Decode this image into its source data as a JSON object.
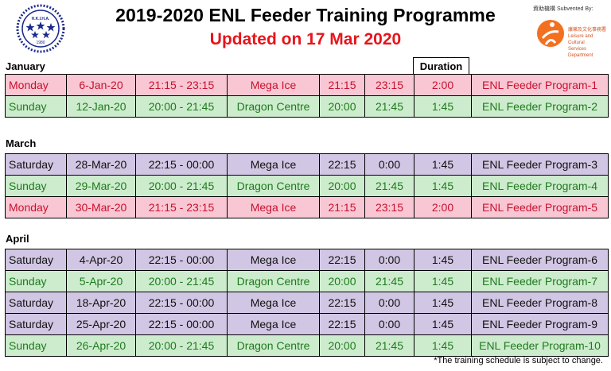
{
  "header": {
    "title": "2019-2020 ENL Feeder Training Programme",
    "subtitle": "Updated on 17 Mar 2020",
    "subtitle_color": "#e8141b",
    "logo_text": "H.K.I.H.A.",
    "logo_year": "1980",
    "logo_icon": "association-seal-icon",
    "sponsor": {
      "label": "資助機構 Subvented By:",
      "name_zh": "康樂及文化事務署",
      "name_en_1": "Leisure and Cultural",
      "name_en_2": "Services Department",
      "logo_icon": "lcsd-figure-icon"
    }
  },
  "duration_header": "Duration",
  "row_colors": {
    "pink": "#f9c7d3",
    "green": "#cdeccd",
    "purple": "#d1c6e3"
  },
  "sections": [
    {
      "label": "January",
      "rows": [
        {
          "style": "pink",
          "day": "Monday",
          "date": "6-Jan-20",
          "time": "21:15 - 23:15",
          "venue": "Mega Ice",
          "start": "21:15",
          "end": "23:15",
          "duration": "2:00",
          "program": "ENL Feeder Program-1"
        },
        {
          "style": "green",
          "day": "Sunday",
          "date": "12-Jan-20",
          "time": "20:00 - 21:45",
          "venue": "Dragon Centre",
          "start": "20:00",
          "end": "21:45",
          "duration": "1:45",
          "program": "ENL Feeder Program-2"
        }
      ]
    },
    {
      "label": "March",
      "rows": [
        {
          "style": "purple",
          "day": "Saturday",
          "date": "28-Mar-20",
          "time": "22:15 - 00:00",
          "venue": "Mega Ice",
          "start": "22:15",
          "end": "0:00",
          "duration": "1:45",
          "program": "ENL Feeder Program-3"
        },
        {
          "style": "green",
          "day": "Sunday",
          "date": "29-Mar-20",
          "time": "20:00 - 21:45",
          "venue": "Dragon Centre",
          "start": "20:00",
          "end": "21:45",
          "duration": "1:45",
          "program": "ENL Feeder Program-4"
        },
        {
          "style": "pink",
          "day": "Monday",
          "date": "30-Mar-20",
          "time": "21:15 - 23:15",
          "venue": "Mega Ice",
          "start": "21:15",
          "end": "23:15",
          "duration": "2:00",
          "program": "ENL Feeder Program-5"
        }
      ]
    },
    {
      "label": "April",
      "rows": [
        {
          "style": "purple",
          "day": "Saturday",
          "date": "4-Apr-20",
          "time": "22:15 - 00:00",
          "venue": "Mega Ice",
          "start": "22:15",
          "end": "0:00",
          "duration": "1:45",
          "program": "ENL Feeder Program-6"
        },
        {
          "style": "green",
          "day": "Sunday",
          "date": "5-Apr-20",
          "time": "20:00 - 21:45",
          "venue": "Dragon Centre",
          "start": "20:00",
          "end": "21:45",
          "duration": "1:45",
          "program": "ENL Feeder Program-7"
        },
        {
          "style": "purple",
          "day": "Saturday",
          "date": "18-Apr-20",
          "time": "22:15 - 00:00",
          "venue": "Mega Ice",
          "start": "22:15",
          "end": "0:00",
          "duration": "1:45",
          "program": "ENL Feeder Program-8"
        },
        {
          "style": "purple",
          "day": "Saturday",
          "date": "25-Apr-20",
          "time": "22:15 - 00:00",
          "venue": "Mega Ice",
          "start": "22:15",
          "end": "0:00",
          "duration": "1:45",
          "program": "ENL Feeder Program-9"
        },
        {
          "style": "green",
          "day": "Sunday",
          "date": "26-Apr-20",
          "time": "20:00 - 21:45",
          "venue": "Dragon Centre",
          "start": "20:00",
          "end": "21:45",
          "duration": "1:45",
          "program": "ENL Feeder Program-10"
        }
      ]
    }
  ],
  "footnote": "*The training schedule is subject to change."
}
